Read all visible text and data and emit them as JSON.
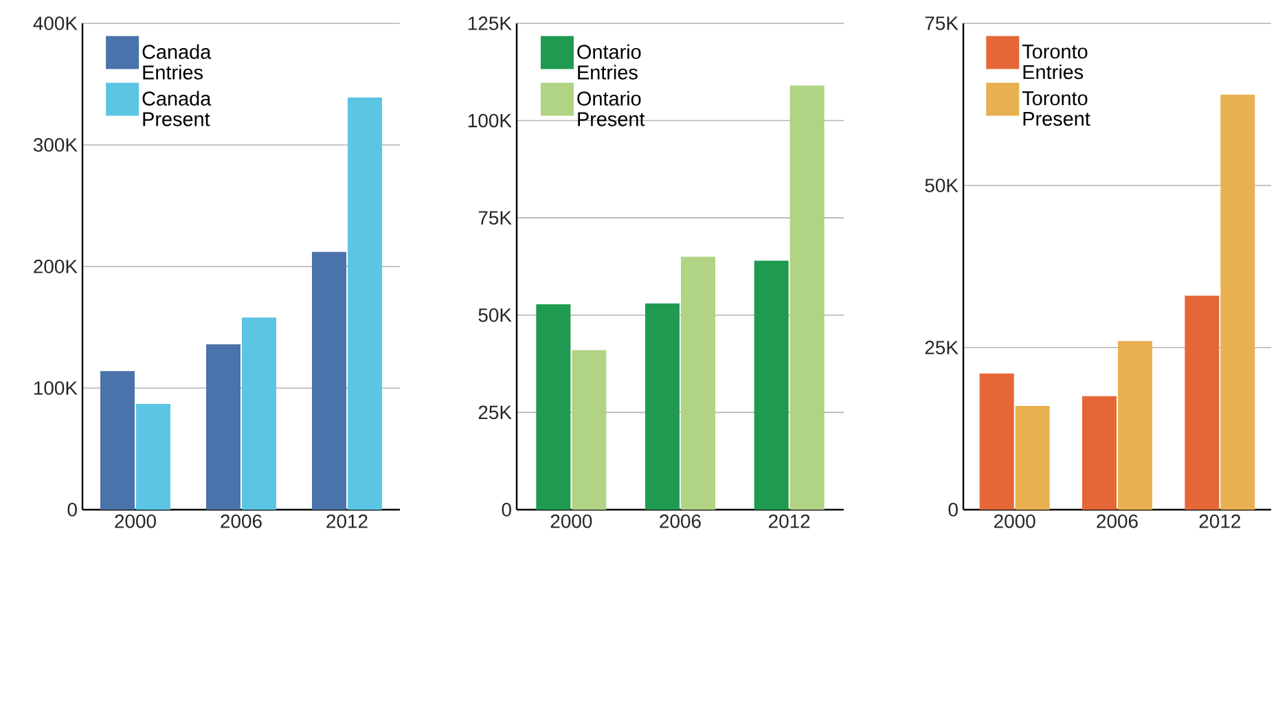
{
  "chart_data": [
    {
      "type": "bar",
      "categories": [
        "2000",
        "2006",
        "2012"
      ],
      "ylim": [
        0,
        400000
      ],
      "yticks": [
        {
          "value": 0,
          "label": "0"
        },
        {
          "value": 100000,
          "label": "100K"
        },
        {
          "value": 200000,
          "label": "200K"
        },
        {
          "value": 300000,
          "label": "300K"
        },
        {
          "value": 400000,
          "label": "400K"
        }
      ],
      "grid": "y",
      "legend": "top left",
      "series": [
        {
          "name": "Canada Entries",
          "color": "#4a72ab",
          "values": [
            114000,
            136000,
            212000
          ]
        },
        {
          "name": "Canada Present",
          "color": "#5bc5e3",
          "values": [
            87000,
            158000,
            339000
          ]
        }
      ]
    },
    {
      "type": "bar",
      "categories": [
        "2000",
        "2006",
        "2012"
      ],
      "ylim": [
        0,
        125000
      ],
      "yticks": [
        {
          "value": 0,
          "label": "0"
        },
        {
          "value": 25000,
          "label": "25K"
        },
        {
          "value": 50000,
          "label": "50K"
        },
        {
          "value": 75000,
          "label": "75K"
        },
        {
          "value": 100000,
          "label": "100K"
        },
        {
          "value": 125000,
          "label": "125K"
        }
      ],
      "grid": "y",
      "legend": "top left",
      "series": [
        {
          "name": "Ontario Entries",
          "color": "#1f9a50",
          "values": [
            52800,
            53000,
            64000
          ]
        },
        {
          "name": "Ontario Present",
          "color": "#b0d384",
          "values": [
            41000,
            65000,
            109000
          ]
        }
      ]
    },
    {
      "type": "bar",
      "categories": [
        "2000",
        "2006",
        "2012"
      ],
      "ylim": [
        0,
        75000
      ],
      "yticks": [
        {
          "value": 0,
          "label": "0"
        },
        {
          "value": 25000,
          "label": "25K"
        },
        {
          "value": 50000,
          "label": "50K"
        },
        {
          "value": 75000,
          "label": "75K"
        }
      ],
      "grid": "y",
      "legend": "top left",
      "series": [
        {
          "name": "Toronto Entries",
          "color": "#e56636",
          "values": [
            21000,
            17500,
            33000
          ]
        },
        {
          "name": "Toronto Present",
          "color": "#e8b050",
          "values": [
            16000,
            26000,
            64000
          ]
        }
      ]
    }
  ]
}
